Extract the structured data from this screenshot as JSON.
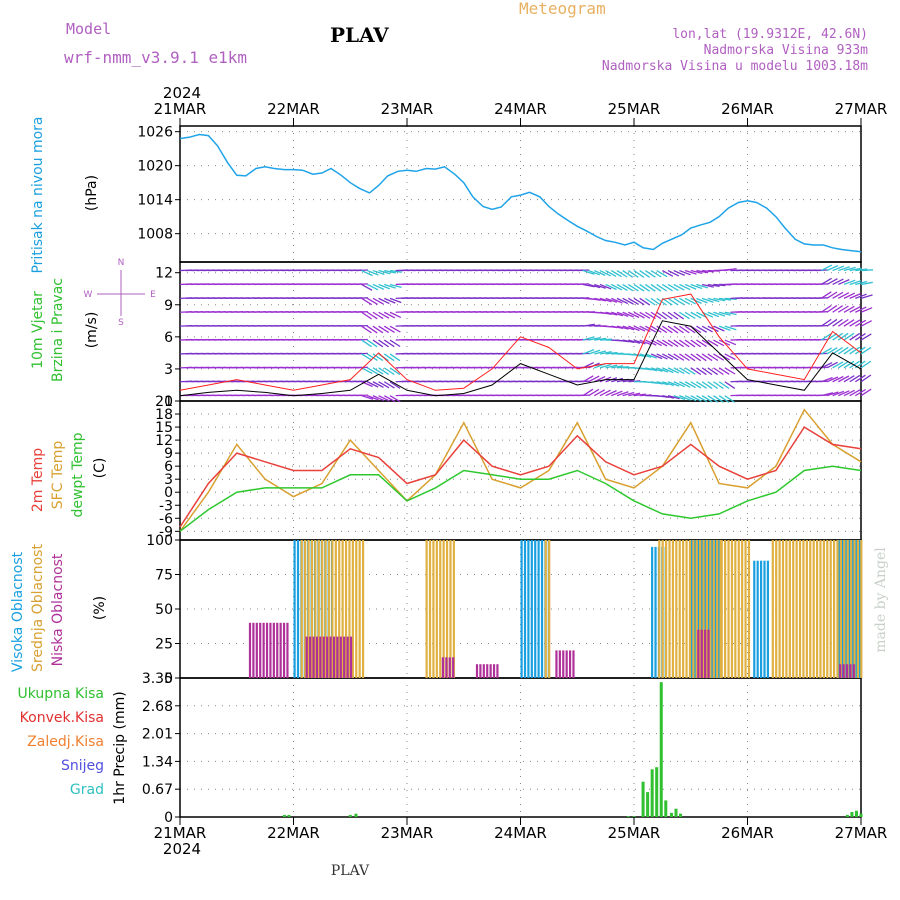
{
  "header": {
    "model_label": "Model",
    "model_name": "wrf-nmm_v3.9.1  e1km",
    "station": "PLAV",
    "product": "Meteogram",
    "lonlat": "lon,lat (19.9312E, 42.6N)",
    "elevation": "Nadmorska Visina 933m",
    "model_elevation": "Nadmorska Visina u modelu 1003.18m"
  },
  "footer": {
    "station": "PLAV",
    "credit": "made by Angel"
  },
  "time_axis": {
    "year": "2024",
    "ticks": [
      "21MAR",
      "22MAR",
      "23MAR",
      "24MAR",
      "25MAR",
      "26MAR",
      "27MAR"
    ],
    "range_days": [
      0,
      6
    ]
  },
  "colors": {
    "pressure": "#1fa3e8",
    "temp2m": "#e8403a",
    "sfc_temp": "#d8a030",
    "dewpt": "#2ec82e",
    "high_cloud": "#1aa0e0",
    "mid_cloud": "#e0b040",
    "low_cloud": "#b0309a",
    "total_precip": "#30c030",
    "conv_precip": "#e03030",
    "frozen_precip": "#f08030",
    "snow": "#5050e0",
    "hail": "#30c0c0",
    "wind_speed": "#000000",
    "gust": "#ff2020"
  },
  "chart_data": [
    {
      "type": "line",
      "name": "pressure",
      "ylabel_title": "Pritisak na nivou mora",
      "ylabel_unit": "(hPa)",
      "ylim": [
        1003,
        1027
      ],
      "yticks": [
        1008,
        1014,
        1020,
        1026
      ],
      "grid": true,
      "x": [
        0,
        0.08,
        0.17,
        0.25,
        0.33,
        0.42,
        0.5,
        0.58,
        0.67,
        0.75,
        0.83,
        0.92,
        1,
        1.08,
        1.17,
        1.25,
        1.33,
        1.42,
        1.5,
        1.58,
        1.67,
        1.75,
        1.83,
        1.92,
        2,
        2.08,
        2.17,
        2.25,
        2.33,
        2.42,
        2.5,
        2.58,
        2.67,
        2.75,
        2.83,
        2.92,
        3,
        3.08,
        3.17,
        3.25,
        3.33,
        3.42,
        3.5,
        3.58,
        3.67,
        3.75,
        3.83,
        3.92,
        4,
        4.08,
        4.17,
        4.25,
        4.33,
        4.42,
        4.5,
        4.58,
        4.67,
        4.75,
        4.83,
        4.92,
        5,
        5.08,
        5.17,
        5.25,
        5.33,
        5.42,
        5.5,
        5.58,
        5.67,
        5.75,
        5.83,
        5.92,
        6
      ],
      "values": [
        1024.8,
        1025,
        1025.5,
        1025.3,
        1023.5,
        1020.5,
        1018.3,
        1018.2,
        1019.5,
        1019.8,
        1019.5,
        1019.3,
        1019.3,
        1019.2,
        1018.5,
        1018.7,
        1019.5,
        1018.3,
        1017,
        1016,
        1015.2,
        1016.5,
        1018.2,
        1019,
        1019.2,
        1019,
        1019.5,
        1019.4,
        1019.8,
        1018.5,
        1017,
        1014.5,
        1012.8,
        1012.3,
        1012.7,
        1014.5,
        1014.8,
        1015.3,
        1014.5,
        1012.8,
        1011.5,
        1010.3,
        1009.3,
        1008.5,
        1007.5,
        1006.8,
        1006.5,
        1006,
        1006.5,
        1005.5,
        1005.2,
        1006.3,
        1007,
        1007.8,
        1009,
        1009.5,
        1010,
        1011,
        1012.5,
        1013.5,
        1013.8,
        1013.5,
        1012.5,
        1011,
        1009,
        1007,
        1006.2,
        1006,
        1006,
        1005.5,
        1005.2,
        1005,
        1004.8
      ]
    },
    {
      "type": "line",
      "name": "wind",
      "ylabel_title1": "10m Vjetar",
      "ylabel_title2": "Brzina i Pravac",
      "ylabel_unit": "(m/s)",
      "compass": [
        "N",
        "E",
        "S",
        "W"
      ],
      "ylim": [
        0,
        13
      ],
      "yticks": [
        0,
        3,
        6,
        9,
        12
      ],
      "grid": true,
      "x": [
        0,
        0.25,
        0.5,
        0.75,
        1,
        1.25,
        1.5,
        1.75,
        2,
        2.25,
        2.5,
        2.75,
        3,
        3.25,
        3.5,
        3.75,
        4,
        4.25,
        4.5,
        4.75,
        5,
        5.25,
        5.5,
        5.75,
        6
      ],
      "speed": [
        0.5,
        0.8,
        1,
        0.8,
        0.5,
        0.7,
        1,
        2.5,
        1,
        0.5,
        0.7,
        1.5,
        3.5,
        2.5,
        1.5,
        2,
        2,
        7.5,
        7,
        4.5,
        2,
        1.5,
        1,
        4.5,
        3
      ],
      "gust": [
        1,
        1.5,
        2,
        1.5,
        1,
        1.5,
        2,
        4.5,
        2,
        1,
        1.2,
        3,
        6,
        5,
        3,
        3.5,
        3.5,
        9.5,
        10,
        6,
        3,
        2.5,
        2,
        6.5,
        4.5
      ]
    },
    {
      "type": "line",
      "name": "temperature",
      "ylabel_title1": "2m Temp",
      "ylabel_title2": "SFC Temp",
      "ylabel_title3": "dewpt Temp",
      "ylabel_unit": "(C)",
      "ylim": [
        -11,
        21
      ],
      "yticks": [
        -9,
        -6,
        -3,
        0,
        3,
        6,
        9,
        12,
        15,
        18,
        21
      ],
      "grid": true,
      "x": [
        0,
        0.25,
        0.5,
        0.75,
        1,
        1.25,
        1.5,
        1.75,
        2,
        2.25,
        2.5,
        2.75,
        3,
        3.25,
        3.5,
        3.75,
        4,
        4.25,
        4.5,
        4.75,
        5,
        5.25,
        5.5,
        5.75,
        6
      ],
      "temp2m": [
        -8,
        2,
        9,
        7,
        5,
        5,
        10,
        8,
        2,
        4,
        12,
        6,
        4,
        6,
        13,
        7,
        4,
        6,
        11,
        6,
        3,
        5,
        15,
        11,
        10
      ],
      "sfc_temp": [
        -9,
        0,
        11,
        3,
        -1,
        2,
        12,
        5,
        -2,
        4,
        16,
        3,
        1,
        5,
        16,
        3,
        1,
        6,
        16,
        2,
        1,
        6,
        19,
        11,
        7
      ],
      "dewpt": [
        -9,
        -4,
        0,
        1,
        1,
        1,
        4,
        4,
        -2,
        1,
        5,
        4,
        3,
        3,
        5,
        2,
        -2,
        -5,
        -6,
        -5,
        -2,
        0,
        5,
        6,
        5
      ]
    },
    {
      "type": "bar",
      "name": "cloud",
      "ylabel_title1": "Visoka Oblacnost",
      "ylabel_title2": "Srednja Oblacnost",
      "ylabel_title3": "Niska Oblacnost",
      "ylabel_unit": "(%)",
      "ylim": [
        0,
        100
      ],
      "yticks": [
        0,
        25,
        50,
        75,
        100
      ],
      "grid": true,
      "segments_high": [
        [
          1.0,
          1.35,
          100
        ],
        [
          3.0,
          3.25,
          100
        ],
        [
          4.15,
          4.3,
          95
        ],
        [
          4.5,
          4.75,
          100
        ],
        [
          5.05,
          5.2,
          85
        ],
        [
          5.8,
          6.0,
          100
        ]
      ],
      "segments_mid": [
        [
          1.05,
          1.6,
          100
        ],
        [
          2.15,
          2.4,
          100
        ],
        [
          3.2,
          3.25,
          100
        ],
        [
          4.2,
          4.75,
          100
        ],
        [
          4.75,
          5.0,
          100
        ],
        [
          5.2,
          6.0,
          100
        ]
      ],
      "segments_low": [
        [
          0.6,
          0.95,
          40
        ],
        [
          1.1,
          1.5,
          30
        ],
        [
          2.3,
          2.4,
          15
        ],
        [
          2.6,
          2.8,
          10
        ],
        [
          3.3,
          3.45,
          20
        ],
        [
          4.55,
          4.65,
          35
        ],
        [
          5.8,
          5.95,
          10
        ]
      ]
    },
    {
      "type": "bar",
      "name": "precip",
      "ylabel_unit": "1hr Precip (mm)",
      "legend": [
        "Ukupna Kisa",
        "Konvek.Kisa",
        "Zaledj.Kisa",
        "Snijeg",
        "Grad"
      ],
      "ylim": [
        0,
        3.35
      ],
      "yticks": [
        "0",
        "0.67",
        "1.34",
        "2.01",
        "2.68",
        "3.35"
      ],
      "grid": true,
      "x": [
        0.92,
        0.96,
        1.5,
        1.55,
        3.95,
        4.0,
        4.08,
        4.12,
        4.16,
        4.2,
        4.24,
        4.28,
        4.33,
        4.37,
        4.41,
        5.88,
        5.92,
        5.96,
        6.0
      ],
      "values": [
        0.05,
        0.05,
        0.05,
        0.08,
        0.02,
        0.02,
        0.85,
        0.6,
        1.15,
        1.2,
        3.25,
        0.4,
        0.1,
        0.2,
        0.08,
        0.05,
        0.12,
        0.15,
        0.08
      ]
    }
  ]
}
